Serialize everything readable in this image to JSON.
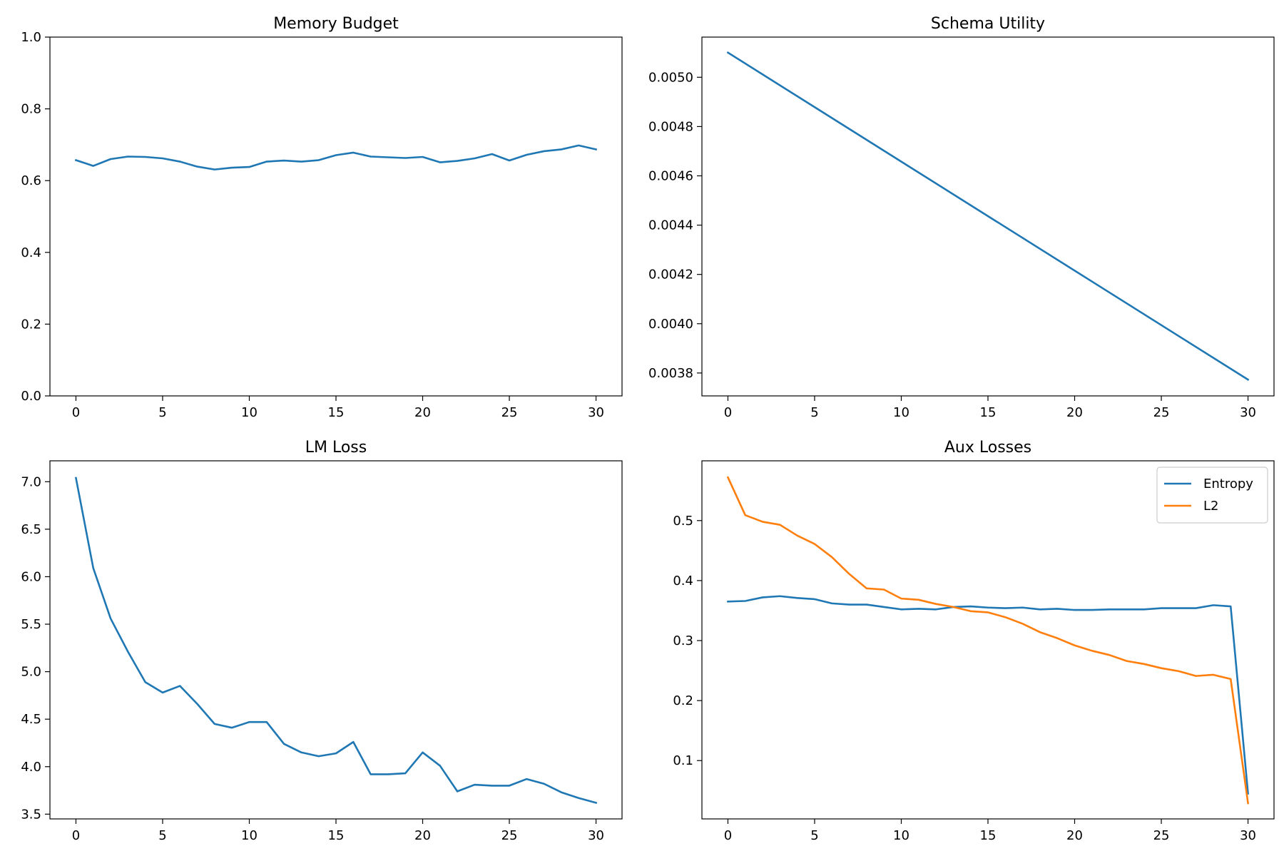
{
  "chart_data": [
    {
      "type": "line",
      "title": "Memory Budget",
      "xlabel": "",
      "ylabel": "",
      "xlim": [
        -1.5,
        31.5
      ],
      "ylim": [
        0.0,
        1.0
      ],
      "xticks": [
        0,
        5,
        10,
        15,
        20,
        25,
        30
      ],
      "yticks": [
        0.0,
        0.2,
        0.4,
        0.6,
        0.8,
        1.0
      ],
      "ytick_decimals": 1,
      "grid": false,
      "legend": "none",
      "x": [
        0,
        1,
        2,
        3,
        4,
        5,
        6,
        7,
        8,
        9,
        10,
        11,
        12,
        13,
        14,
        15,
        16,
        17,
        18,
        19,
        20,
        21,
        22,
        23,
        24,
        25,
        26,
        27,
        28,
        29,
        30
      ],
      "series": [
        {
          "color": "#1f77b4",
          "values": [
            0.657,
            0.641,
            0.66,
            0.667,
            0.666,
            0.662,
            0.653,
            0.639,
            0.631,
            0.636,
            0.638,
            0.653,
            0.656,
            0.653,
            0.657,
            0.671,
            0.678,
            0.667,
            0.665,
            0.663,
            0.666,
            0.651,
            0.655,
            0.662,
            0.674,
            0.656,
            0.672,
            0.682,
            0.687,
            0.698,
            0.687
          ]
        }
      ]
    },
    {
      "type": "line",
      "title": "Schema Utility",
      "xlabel": "",
      "ylabel": "",
      "xlim": [
        -1.5,
        31.5
      ],
      "ylim": [
        0.003707,
        0.005163
      ],
      "xticks": [
        0,
        5,
        10,
        15,
        20,
        25,
        30
      ],
      "yticks": [
        0.0038,
        0.004,
        0.0042,
        0.0044,
        0.0046,
        0.0048,
        0.005
      ],
      "ytick_decimals": 4,
      "grid": false,
      "legend": "none",
      "x": [
        0,
        30
      ],
      "series": [
        {
          "color": "#1f77b4",
          "values": [
            0.0051,
            0.003773
          ]
        }
      ]
    },
    {
      "type": "line",
      "title": "LM Loss",
      "xlabel": "",
      "ylabel": "",
      "xlim": [
        -1.5,
        31.5
      ],
      "ylim": [
        3.45,
        7.22
      ],
      "xticks": [
        0,
        5,
        10,
        15,
        20,
        25,
        30
      ],
      "yticks": [
        3.5,
        4.0,
        4.5,
        5.0,
        5.5,
        6.0,
        6.5,
        7.0
      ],
      "ytick_decimals": 1,
      "grid": false,
      "legend": "none",
      "x": [
        0,
        1,
        2,
        3,
        4,
        5,
        6,
        7,
        8,
        9,
        10,
        11,
        12,
        13,
        14,
        15,
        16,
        17,
        18,
        19,
        20,
        21,
        22,
        23,
        24,
        25,
        26,
        27,
        28,
        29,
        30
      ],
      "series": [
        {
          "color": "#1f77b4",
          "values": [
            7.04,
            6.09,
            5.56,
            5.21,
            4.89,
            4.78,
            4.85,
            4.66,
            4.45,
            4.41,
            4.47,
            4.47,
            4.24,
            4.15,
            4.11,
            4.14,
            4.26,
            3.92,
            3.92,
            3.93,
            4.15,
            4.01,
            3.74,
            3.81,
            3.8,
            3.8,
            3.87,
            3.82,
            3.73,
            3.67,
            3.62
          ]
        }
      ]
    },
    {
      "type": "line",
      "title": "Aux Losses",
      "xlabel": "",
      "ylabel": "",
      "xlim": [
        -1.5,
        31.5
      ],
      "ylim": [
        0.0028,
        0.5996
      ],
      "xticks": [
        0,
        5,
        10,
        15,
        20,
        25,
        30
      ],
      "yticks": [
        0.1,
        0.2,
        0.3,
        0.4,
        0.5
      ],
      "ytick_decimals": 1,
      "grid": false,
      "legend": "top-right",
      "x": [
        0,
        1,
        2,
        3,
        4,
        5,
        6,
        7,
        8,
        9,
        10,
        11,
        12,
        13,
        14,
        15,
        16,
        17,
        18,
        19,
        20,
        21,
        22,
        23,
        24,
        25,
        26,
        27,
        28,
        29,
        30
      ],
      "series": [
        {
          "name": "Entropy",
          "color": "#1f77b4",
          "values": [
            0.365,
            0.366,
            0.372,
            0.374,
            0.371,
            0.369,
            0.362,
            0.36,
            0.36,
            0.356,
            0.352,
            0.353,
            0.352,
            0.356,
            0.357,
            0.355,
            0.354,
            0.355,
            0.352,
            0.353,
            0.351,
            0.351,
            0.352,
            0.352,
            0.352,
            0.354,
            0.354,
            0.354,
            0.359,
            0.357,
            0.045
          ]
        },
        {
          "name": "L2",
          "color": "#ff7f0e",
          "values": [
            0.572,
            0.509,
            0.498,
            0.493,
            0.475,
            0.461,
            0.439,
            0.411,
            0.387,
            0.385,
            0.37,
            0.368,
            0.361,
            0.356,
            0.349,
            0.347,
            0.339,
            0.328,
            0.314,
            0.304,
            0.292,
            0.283,
            0.276,
            0.266,
            0.261,
            0.254,
            0.249,
            0.241,
            0.243,
            0.236,
            0.029
          ]
        }
      ]
    }
  ]
}
